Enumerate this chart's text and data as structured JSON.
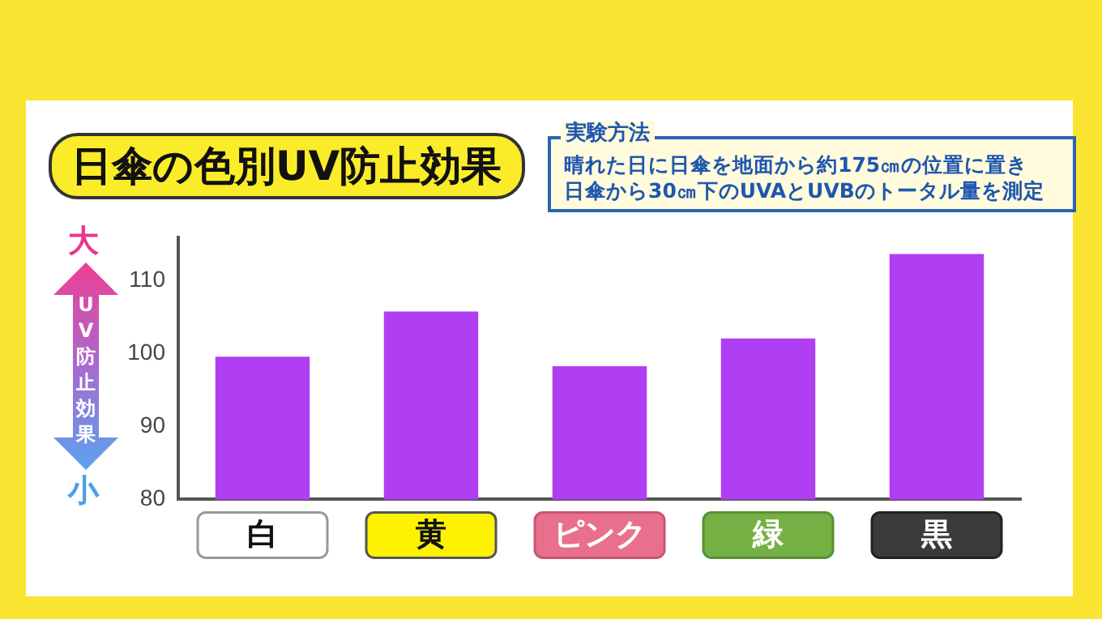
{
  "chart_data": {
    "type": "bar",
    "title": "日傘の色別UV防止効果",
    "ylabel": "UV防止効果",
    "categories": [
      "白",
      "黄",
      "ピンク",
      "緑",
      "黒"
    ],
    "values": [
      99.6,
      105.8,
      98.3,
      102.1,
      113.7
    ],
    "color": "#b03ef2",
    "ylim": [
      80,
      116
    ],
    "yticks": [
      80,
      90,
      100,
      110
    ],
    "grid": false,
    "legend": false,
    "annotations": [
      "大",
      "小",
      "実験方法",
      "晴れた日に日傘を地面から約175㎝の位置に置き",
      "日傘から30㎝下のUVAとUVBのトータル量を測定"
    ]
  }
}
